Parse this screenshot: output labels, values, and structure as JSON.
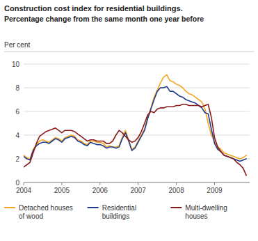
{
  "chart_data": {
    "type": "line",
    "title": "Construction cost index for residential buildings.",
    "subtitle": "Percentage change from the same month one year before",
    "ylabel": "Per cent",
    "ylim": [
      0,
      10
    ],
    "yticks": [
      0,
      2,
      4,
      6,
      8,
      10
    ],
    "xlim": [
      2004.0,
      2009.92
    ],
    "xticks": [
      2004,
      2005,
      2006,
      2007,
      2008,
      2009
    ],
    "grid": true,
    "legend": "bottom",
    "x": [
      2004.0,
      2004.083,
      2004.167,
      2004.25,
      2004.333,
      2004.417,
      2004.5,
      2004.583,
      2004.667,
      2004.75,
      2004.833,
      2004.917,
      2005.0,
      2005.083,
      2005.167,
      2005.25,
      2005.333,
      2005.417,
      2005.5,
      2005.583,
      2005.667,
      2005.75,
      2005.833,
      2005.917,
      2006.0,
      2006.083,
      2006.167,
      2006.25,
      2006.333,
      2006.417,
      2006.5,
      2006.583,
      2006.667,
      2006.75,
      2006.833,
      2006.917,
      2007.0,
      2007.083,
      2007.167,
      2007.25,
      2007.333,
      2007.417,
      2007.5,
      2007.583,
      2007.667,
      2007.75,
      2007.833,
      2007.917,
      2008.0,
      2008.083,
      2008.167,
      2008.25,
      2008.333,
      2008.417,
      2008.5,
      2008.583,
      2008.667,
      2008.75,
      2008.833,
      2008.917,
      2009.0,
      2009.083,
      2009.167,
      2009.25,
      2009.333,
      2009.417,
      2009.5,
      2009.583,
      2009.667,
      2009.75,
      2009.833
    ],
    "series": [
      {
        "name": "Detached houses\nof wood",
        "color": "#F5A623",
        "values": [
          2.3,
          2.1,
          2.0,
          2.8,
          3.2,
          3.5,
          3.6,
          3.5,
          3.4,
          3.6,
          3.8,
          3.7,
          3.5,
          3.8,
          3.9,
          4.0,
          3.9,
          3.6,
          3.5,
          3.3,
          3.2,
          3.5,
          3.5,
          3.4,
          3.4,
          3.3,
          3.0,
          3.1,
          3.0,
          3.0,
          3.1,
          3.8,
          4.4,
          3.6,
          2.8,
          3.0,
          3.5,
          4.0,
          4.5,
          5.5,
          6.3,
          7.2,
          7.8,
          8.4,
          8.9,
          9.1,
          8.6,
          8.5,
          8.3,
          8.2,
          8.0,
          7.7,
          7.5,
          7.4,
          7.2,
          7.0,
          6.8,
          6.2,
          5.0,
          4.0,
          3.5,
          3.0,
          2.8,
          2.5,
          2.4,
          2.3,
          2.2,
          2.1,
          2.0,
          2.1,
          2.3
        ]
      },
      {
        "name": "Residential\nbuildings",
        "color": "#1E3D8F",
        "values": [
          2.2,
          2.0,
          1.9,
          2.7,
          3.1,
          3.3,
          3.4,
          3.4,
          3.3,
          3.5,
          3.7,
          3.6,
          3.4,
          3.7,
          3.8,
          3.9,
          3.8,
          3.5,
          3.4,
          3.2,
          3.1,
          3.4,
          3.3,
          3.2,
          3.2,
          3.1,
          2.9,
          3.0,
          3.0,
          2.9,
          3.0,
          3.7,
          4.2,
          3.5,
          2.7,
          2.9,
          3.4,
          3.9,
          4.4,
          5.4,
          6.2,
          7.0,
          7.7,
          8.0,
          8.0,
          8.1,
          7.7,
          7.7,
          7.5,
          7.3,
          7.2,
          7.0,
          6.9,
          6.8,
          6.7,
          6.5,
          6.3,
          5.9,
          5.8,
          4.5,
          3.3,
          2.8,
          2.6,
          2.3,
          2.2,
          2.1,
          2.0,
          1.9,
          1.8,
          1.9,
          2.0
        ]
      },
      {
        "name": "Multi-dwelling\nhouses",
        "color": "#8B1A1A",
        "values": [
          1.3,
          1.5,
          1.7,
          2.5,
          3.3,
          3.9,
          4.1,
          4.3,
          4.4,
          4.5,
          4.6,
          4.4,
          4.2,
          4.4,
          4.4,
          4.4,
          4.3,
          4.1,
          3.9,
          3.7,
          3.5,
          3.6,
          3.6,
          3.5,
          3.5,
          3.5,
          3.3,
          3.3,
          3.5,
          4.0,
          4.4,
          4.2,
          3.9,
          3.6,
          3.4,
          3.5,
          3.8,
          4.3,
          5.0,
          5.7,
          6.0,
          5.9,
          6.2,
          6.3,
          6.3,
          6.4,
          6.4,
          6.4,
          6.5,
          6.5,
          6.6,
          6.6,
          6.5,
          6.5,
          6.5,
          6.5,
          6.4,
          6.5,
          6.6,
          5.5,
          3.8,
          3.0,
          2.6,
          2.3,
          2.2,
          2.1,
          2.0,
          1.7,
          1.5,
          1.2,
          0.6
        ]
      }
    ]
  }
}
